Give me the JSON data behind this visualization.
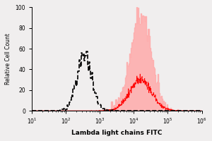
{
  "title": "",
  "xlabel": "Lambda light chains FITC",
  "ylabel": "Relative Cell Count",
  "xlim": [
    10.0,
    1000000.0
  ],
  "ylim": [
    0,
    100
  ],
  "yticks": [
    0,
    20,
    40,
    60,
    80,
    100
  ],
  "ytick_labels": [
    "0",
    "20",
    "40",
    "60",
    "80",
    "100"
  ],
  "background_color": "#f0eeee",
  "dashed_peak_log": 2.55,
  "dashed_log_std": 0.22,
  "dashed_color": "black",
  "red_peak_log": 4.2,
  "red_log_std": 0.32,
  "red_color": "#ff0000",
  "red_fill_color": "#ffaaaa",
  "n_bins": 200,
  "n_dashed": 2000,
  "n_red": 5000,
  "spike_seed": 7
}
